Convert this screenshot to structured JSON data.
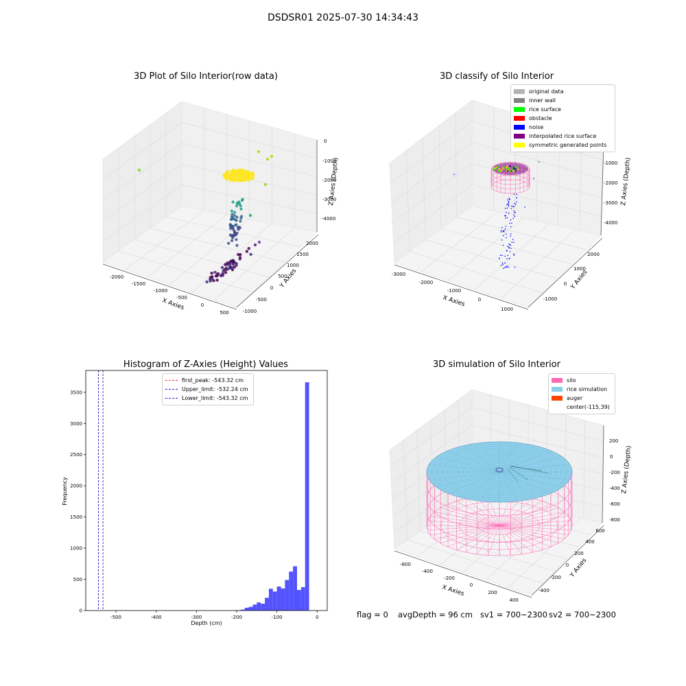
{
  "figure_title": "DSDSR01 2025-07-30 14:34:43",
  "status": {
    "flag": "flag = 0",
    "avg_depth": "avgDepth = 96 cm",
    "sv1": "sv1 = 700~2300",
    "sv2": "sv2 = 700~2300"
  },
  "colors": {
    "histogram_bar": "#4b4bff",
    "first_peak": "#e8323c",
    "limits": "#1f1fbf",
    "silo_wire": "#ff69b4",
    "rice_surface": "#87ceeb"
  },
  "chart_data": [
    {
      "type": "scatter",
      "subtype": "3d",
      "title": "3D Plot of Silo Interior(row data)",
      "xlabel": "X Axies",
      "ylabel": "Y Axies",
      "zlabel": "Z Axies (Depth)",
      "x_ticks": [
        "-2000",
        "-1500",
        "-1000",
        "-500",
        "0",
        "500"
      ],
      "y_ticks": [
        "-1000",
        "-500",
        "0",
        "500",
        "1000",
        "1500",
        "2000"
      ],
      "z_ticks": [
        "0",
        "-1000",
        "-2000",
        "-3000",
        "-4000"
      ],
      "colormap": "viridis"
    },
    {
      "type": "scatter",
      "subtype": "3d",
      "title": "3D classify of Silo Interior",
      "xlabel": "X Axies",
      "ylabel": "Y Axies",
      "zlabel": "Z Axies (Depth)",
      "x_ticks": [
        "-3000",
        "-2000",
        "-1000",
        "0",
        "1000"
      ],
      "y_ticks": [
        "-1000",
        "0",
        "1000",
        "2000"
      ],
      "z_ticks": [
        "-1000",
        "-2000",
        "-3000",
        "-4000"
      ],
      "legend_position": "top-right",
      "legend": [
        {
          "label": "original data",
          "color": "#b3b3b3"
        },
        {
          "label": "inner wall",
          "color": "#808080"
        },
        {
          "label": "rice surface",
          "color": "#00ff00"
        },
        {
          "label": "obstacle",
          "color": "#ff0000"
        },
        {
          "label": "noise",
          "color": "#0000ff"
        },
        {
          "label": "interpolated rice surface",
          "color": "#800080"
        },
        {
          "label": "symmetric generated points",
          "color": "#ffff00"
        }
      ]
    },
    {
      "type": "bar",
      "subtype": "histogram",
      "title": "Histogram of Z-Axies (Height) Values",
      "xlabel": "Depth (cm)",
      "ylabel": "Frequency",
      "xlim": [
        -575,
        25
      ],
      "ylim": [
        0,
        3850
      ],
      "x_ticks": [
        -500,
        -400,
        -300,
        -200,
        -100,
        0
      ],
      "y_ticks": [
        0,
        500,
        1000,
        1500,
        2000,
        2500,
        3000,
        3500
      ],
      "bin_width": 10,
      "bins": [
        {
          "x": -210,
          "value": 3
        },
        {
          "x": -200,
          "value": 6
        },
        {
          "x": -190,
          "value": 15
        },
        {
          "x": -180,
          "value": 45
        },
        {
          "x": -170,
          "value": 60
        },
        {
          "x": -160,
          "value": 95
        },
        {
          "x": -150,
          "value": 130
        },
        {
          "x": -140,
          "value": 110
        },
        {
          "x": -130,
          "value": 205
        },
        {
          "x": -120,
          "value": 350
        },
        {
          "x": -110,
          "value": 305
        },
        {
          "x": -100,
          "value": 385
        },
        {
          "x": -90,
          "value": 355
        },
        {
          "x": -80,
          "value": 490
        },
        {
          "x": -70,
          "value": 625
        },
        {
          "x": -60,
          "value": 710
        },
        {
          "x": -50,
          "value": 330
        },
        {
          "x": -40,
          "value": 375
        },
        {
          "x": -30,
          "value": 3660
        }
      ],
      "vlines": [
        {
          "x": -543.32,
          "color": "#e8323c"
        },
        {
          "x": -532.24,
          "color": "#1f1fbf"
        },
        {
          "x": -543.32,
          "color": "#1f1fbf"
        }
      ],
      "legend_position": "top-center",
      "legend": [
        {
          "label": "first_peak: -543.32 cm",
          "color": "#e8323c"
        },
        {
          "label": "Upper_limit: -532.24 cm",
          "color": "#1f1fbf"
        },
        {
          "label": "Lower_limit: -543.32 cm",
          "color": "#1f1fbf"
        }
      ]
    },
    {
      "type": "area",
      "subtype": "3d-surface",
      "title": "3D simulation of Silo Interior",
      "xlabel": "X Axies",
      "ylabel": "Y Axies",
      "zlabel": "Z Axies (Depth)",
      "x_ticks": [
        "-600",
        "-400",
        "-200",
        "0",
        "200",
        "400"
      ],
      "y_ticks": [
        "-400",
        "-200",
        "0",
        "200",
        "400",
        "600"
      ],
      "z_ticks": [
        "200",
        "0",
        "-200",
        "-400",
        "-600",
        "-800"
      ],
      "legend_position": "top-right",
      "legend": [
        {
          "label": "silo",
          "color": "#ff69b4"
        },
        {
          "label": "rice simulation",
          "color": "#87ceeb"
        },
        {
          "label": "auger",
          "color": "#ff4500"
        },
        {
          "label": "center(-115,39)",
          "color": ""
        }
      ]
    }
  ]
}
